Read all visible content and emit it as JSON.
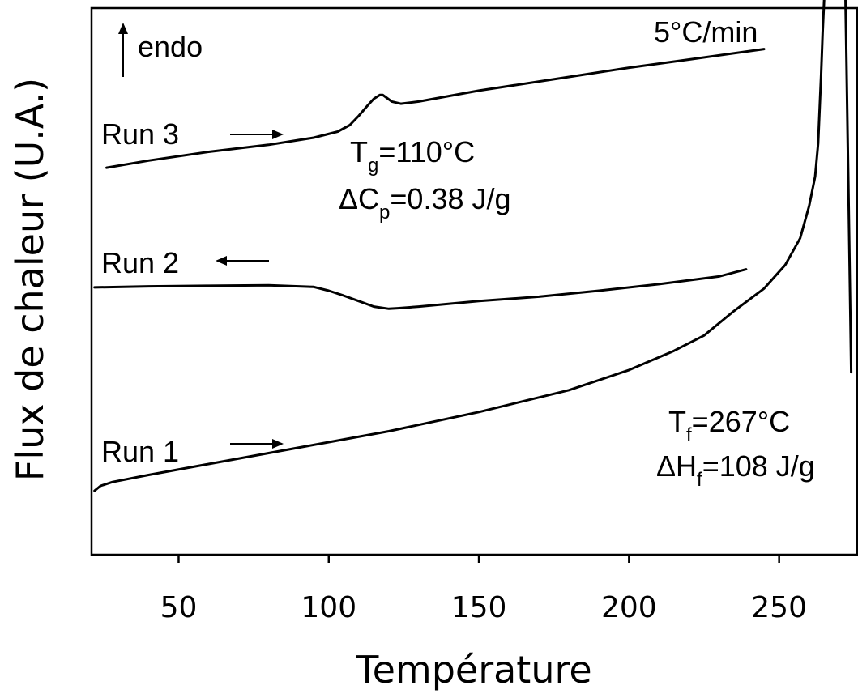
{
  "chart_data": {
    "type": "line",
    "xlabel": "Température",
    "ylabel": "Flux de chaleur (U.A.)",
    "xlim": [
      21,
      276
    ],
    "ylim": [
      0,
      100
    ],
    "xticks": [
      50,
      100,
      150,
      200,
      250
    ],
    "grid": false,
    "series": [
      {
        "name": "Run 3",
        "direction": "heating",
        "x": [
          26,
          40,
          60,
          80,
          95,
          103,
          107,
          110,
          113,
          115,
          117,
          118,
          119,
          121,
          124,
          130,
          150,
          180,
          200,
          220,
          245
        ],
        "y": [
          70.8,
          72.1,
          73.7,
          75.0,
          76.3,
          77.4,
          78.6,
          80.3,
          82.2,
          83.4,
          84.1,
          84.1,
          83.7,
          82.9,
          82.5,
          82.9,
          84.9,
          87.4,
          89.1,
          90.6,
          92.5
        ]
      },
      {
        "name": "Run 2",
        "direction": "cooling",
        "x": [
          22,
          40,
          60,
          80,
          95,
          100,
          105,
          110,
          115,
          120,
          123,
          130,
          150,
          170,
          190,
          210,
          230,
          239
        ],
        "y": [
          48.9,
          49.1,
          49.2,
          49.3,
          49.0,
          48.3,
          47.4,
          46.4,
          45.4,
          45.0,
          45.1,
          45.4,
          46.4,
          47.2,
          48.3,
          49.5,
          50.9,
          52.2
        ]
      },
      {
        "name": "Run 1",
        "direction": "heating",
        "x": [
          22,
          24,
          28,
          40,
          60,
          80,
          100,
          120,
          150,
          180,
          200,
          215,
          225,
          235,
          245,
          252,
          257,
          260,
          262,
          263,
          264,
          264.5,
          265,
          265.5,
          272,
          273,
          274
        ],
        "y": [
          11.7,
          12.6,
          13.3,
          14.6,
          16.6,
          18.6,
          20.6,
          22.6,
          26.1,
          30.1,
          33.8,
          37.3,
          40.1,
          44.6,
          48.7,
          53.0,
          57.9,
          63.8,
          69.2,
          75.2,
          87.9,
          95.6,
          101.5,
          105,
          105,
          70.0,
          33.4
        ]
      }
    ],
    "labels": {
      "endo": "endo",
      "rate": "5°C/min",
      "run3": "Run 3",
      "run2": "Run 2",
      "run1": "Run 1",
      "tg_main": "T",
      "tg_sub": "g",
      "tg_value": "=110°C",
      "dcp_main": "ΔC",
      "dcp_sub": "p",
      "dcp_value": "=0.38 J/g",
      "tf_main": "T",
      "tf_sub": "f",
      "tf_value": "=267°C",
      "dhf_main": "ΔH",
      "dhf_sub": "f",
      "dhf_value": "=108 J/g"
    }
  }
}
